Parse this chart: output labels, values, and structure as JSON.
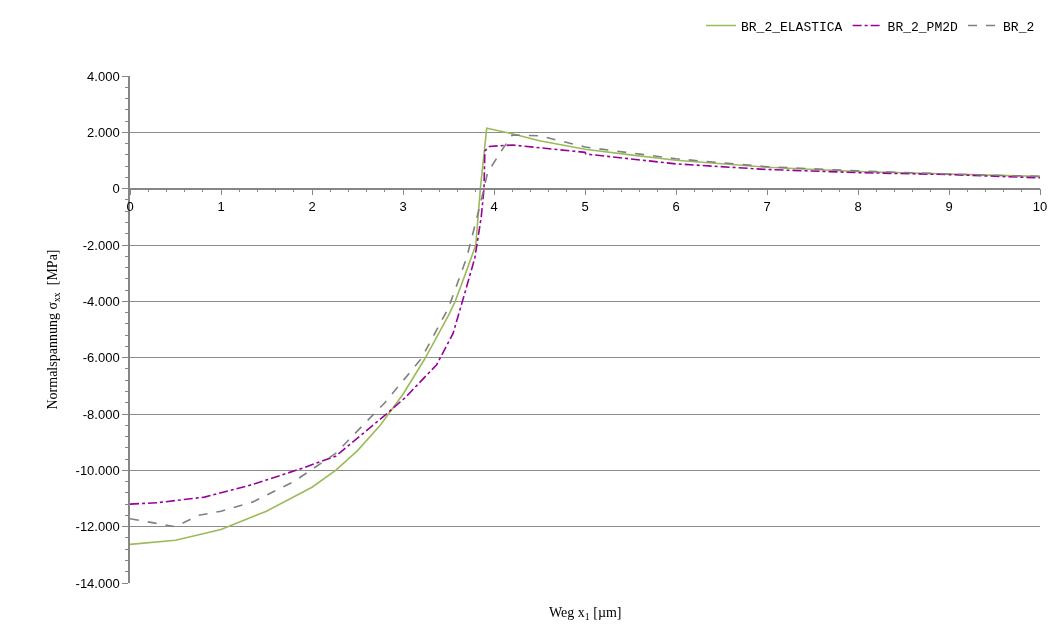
{
  "chart_data": {
    "type": "line",
    "xlabel": "Weg x$_{1}$ [µm]",
    "ylabel": "Normalspannung σ$_{xx}$  [MPa]",
    "xlim": [
      0,
      10
    ],
    "xticks": [
      0,
      1,
      2,
      3,
      4,
      5,
      6,
      7,
      8,
      9,
      10
    ],
    "ylim": [
      -14000,
      4000
    ],
    "yticks": [
      {
        "value": -14000,
        "label": "-14.000"
      },
      {
        "value": -12000,
        "label": "-12.000"
      },
      {
        "value": -10000,
        "label": "-10.000"
      },
      {
        "value": -8000,
        "label": "-8.000"
      },
      {
        "value": -6000,
        "label": "-6.000"
      },
      {
        "value": -4000,
        "label": "-4.000"
      },
      {
        "value": -2000,
        "label": "-2.000"
      },
      0,
      {
        "value": 2000,
        "label": "2.000"
      },
      {
        "value": 4000,
        "label": "4.000"
      }
    ],
    "grid": "y",
    "legend": "top right",
    "marker": "none",
    "series": [
      {
        "name": "BR_2_ELASTICA",
        "color": "#9bbb59",
        "line_style": "solid",
        "x": [
          0,
          0.5,
          1,
          1.5,
          2,
          2.26,
          2.5,
          2.75,
          3,
          3.24,
          3.5,
          3.57,
          3.7,
          3.8,
          3.85,
          3.92,
          4.2,
          4.5,
          5,
          5.5,
          6,
          7,
          8,
          9,
          10
        ],
        "values": [
          -12630,
          -12480,
          -12100,
          -11450,
          -10600,
          -10000,
          -9300,
          -8400,
          -7300,
          -6040,
          -4500,
          -4030,
          -2900,
          -2000,
          0,
          2150,
          1950,
          1700,
          1400,
          1200,
          1010,
          760,
          610,
          520,
          435
        ]
      },
      {
        "name": "BR_2_PM2D",
        "color": "#990099",
        "line_style": "dashdot",
        "x": [
          0,
          0.3,
          0.82,
          1.35,
          1.87,
          2.26,
          2.8,
          3.03,
          3.37,
          3.55,
          3.68,
          3.79,
          3.86,
          3.89,
          3.9,
          3.95,
          4.2,
          5,
          5.01,
          6,
          7,
          8,
          9,
          10
        ],
        "values": [
          -11200,
          -11150,
          -10950,
          -10500,
          -9950,
          -9500,
          -8050,
          -7400,
          -6250,
          -5140,
          -3700,
          -2450,
          -1000,
          0,
          1340,
          1500,
          1550,
          1290,
          1230,
          880,
          680,
          570,
          500,
          385
        ]
      },
      {
        "name": "BR_2",
        "color": "#808080",
        "line_style": "dashed",
        "x": [
          0,
          0.5,
          0.75,
          1,
          1.35,
          1.8,
          2.26,
          2.8,
          3.2,
          3.5,
          3.7,
          3.84,
          3.93,
          4.08,
          4.2,
          4.5,
          5,
          6,
          7,
          8,
          9,
          10
        ],
        "values": [
          -11720,
          -12000,
          -11600,
          -11450,
          -11120,
          -10400,
          -9400,
          -7600,
          -6040,
          -4230,
          -2450,
          -670,
          570,
          1340,
          1900,
          1880,
          1480,
          1060,
          780,
          630,
          520,
          435
        ]
      }
    ]
  }
}
